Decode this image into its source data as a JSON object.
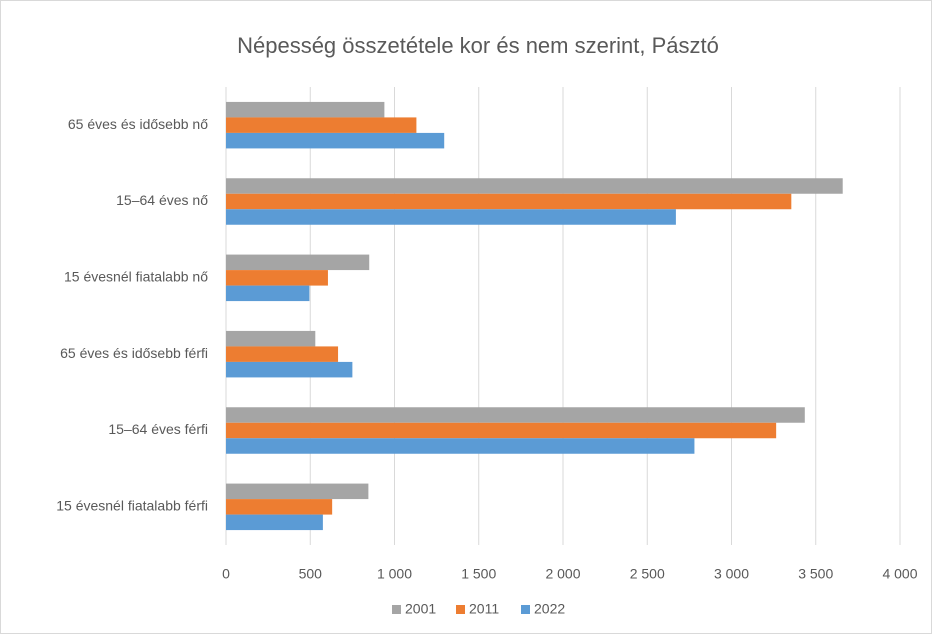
{
  "chart_data": {
    "type": "bar",
    "orientation": "horizontal",
    "title": "Népesség összetétele kor és nem szerint, Pásztó",
    "categories": [
      "65 éves és idősebb nő",
      "15–64 éves nő",
      "15 évesnél fiatalabb nő",
      "65 éves és idősebb férfi",
      "15–64 éves férfi",
      "15 évesnél fiatalabb férfi"
    ],
    "series": [
      {
        "name": "2001",
        "color": "#a5a5a5",
        "values": [
          940,
          3660,
          850,
          530,
          3435,
          845
        ]
      },
      {
        "name": "2011",
        "color": "#ed7d31",
        "values": [
          1130,
          3355,
          605,
          665,
          3265,
          630
        ]
      },
      {
        "name": "2022",
        "color": "#5b9bd5",
        "values": [
          1295,
          2670,
          495,
          750,
          2780,
          575
        ]
      }
    ],
    "xlim": [
      0,
      4000
    ],
    "xticks": [
      0,
      500,
      {
        "value": 1000,
        "label": "1 000"
      },
      {
        "value": 1500,
        "label": "1 500"
      },
      {
        "value": 2000,
        "label": "2 000"
      },
      {
        "value": 2500,
        "label": "2 500"
      },
      {
        "value": 3000,
        "label": "3 000"
      },
      {
        "value": 3500,
        "label": "3 500"
      },
      {
        "value": 4000,
        "label": "4 000"
      }
    ],
    "grid": true,
    "legend": "bottom"
  }
}
